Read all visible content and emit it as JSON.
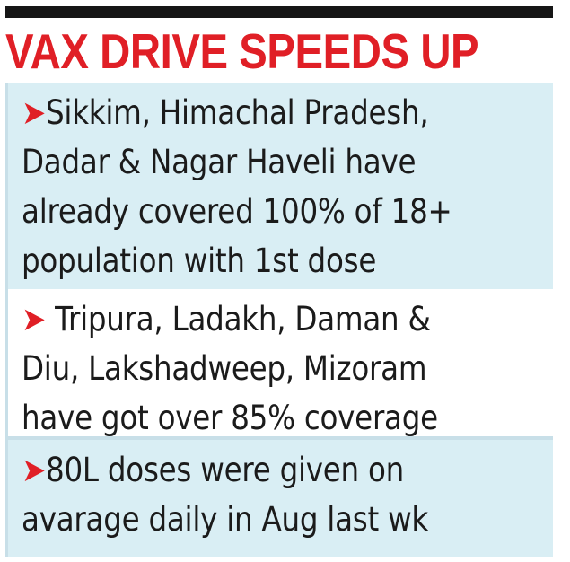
{
  "headline": "VAX DRIVE SPEEDS UP",
  "bullets": [
    {
      "arrow_icon": "right-arrowhead-icon",
      "text": "Sikkim, Himachal Pradesh,\nDadar & Nagar Haveli have\nalready covered 100% of 18+\npopulation with 1st dose"
    },
    {
      "arrow_icon": "right-arrowhead-icon",
      "text": " Tripura, Ladakh, Daman &\nDiu, Lakshadweep, Mizoram\nhave got over 85% coverage"
    },
    {
      "arrow_icon": "right-arrowhead-icon",
      "text": "80L doses were given on\navarage daily in Aug last wk"
    }
  ],
  "colors": {
    "headline": "#e01f26",
    "panel_tint": "#d9eef4",
    "rule": "#161616",
    "text": "#1b1b1b"
  }
}
